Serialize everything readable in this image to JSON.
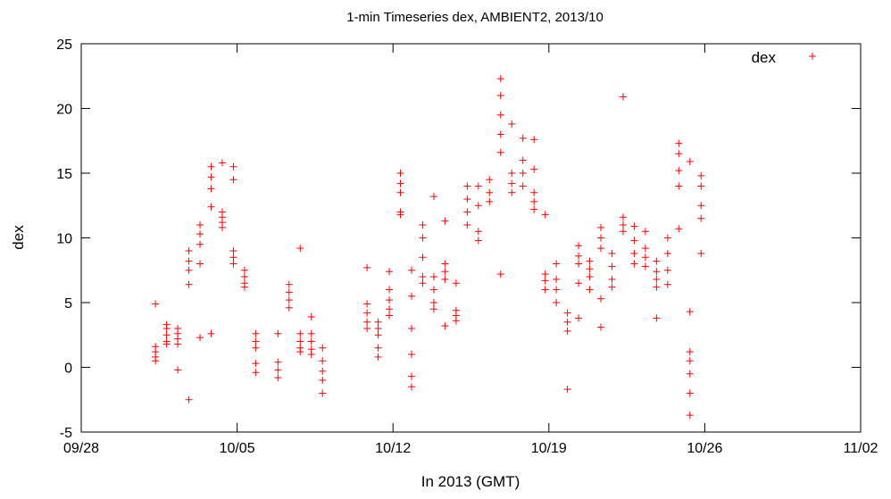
{
  "chart_data": {
    "type": "scatter",
    "title": "1-min Timeseries dex, AMBIENT2, 2013/10",
    "xlabel": "In 2013 (GMT)",
    "ylabel": "dex",
    "xlim": [
      "2013-09-28",
      "2013-11-02"
    ],
    "ylim": [
      -5,
      25
    ],
    "x_ticks": [
      {
        "date": "2013-09-28",
        "label": "09/28"
      },
      {
        "date": "2013-10-05",
        "label": "10/05"
      },
      {
        "date": "2013-10-12",
        "label": "10/12"
      },
      {
        "date": "2013-10-19",
        "label": "10/19"
      },
      {
        "date": "2013-10-26",
        "label": "10/26"
      },
      {
        "date": "2013-11-02",
        "label": "11/02"
      }
    ],
    "y_ticks": [
      -5,
      0,
      5,
      10,
      15,
      20,
      25
    ],
    "grid": false,
    "legend_position": "top-right",
    "marker": "plus",
    "series": [
      {
        "name": "dex",
        "color": "#ff0000",
        "points": [
          {
            "x": "2013-10-01 08:00",
            "y": 1.2
          },
          {
            "x": "2013-10-01 08:00",
            "y": 0.8
          },
          {
            "x": "2013-10-01 08:00",
            "y": 1.6
          },
          {
            "x": "2013-10-01 08:00",
            "y": 4.9
          },
          {
            "x": "2013-10-01 08:00",
            "y": 0.5
          },
          {
            "x": "2013-10-01 20:00",
            "y": 2.5
          },
          {
            "x": "2013-10-01 20:00",
            "y": 2.0
          },
          {
            "x": "2013-10-01 20:00",
            "y": 3.0
          },
          {
            "x": "2013-10-01 20:00",
            "y": 3.3
          },
          {
            "x": "2013-10-01 20:00",
            "y": 1.8
          },
          {
            "x": "2013-10-02 08:00",
            "y": 2.2
          },
          {
            "x": "2013-10-02 08:00",
            "y": 1.8
          },
          {
            "x": "2013-10-02 08:00",
            "y": 2.6
          },
          {
            "x": "2013-10-02 08:00",
            "y": -0.2
          },
          {
            "x": "2013-10-02 08:00",
            "y": 3.0
          },
          {
            "x": "2013-10-02 20:00",
            "y": 8.2
          },
          {
            "x": "2013-10-02 20:00",
            "y": 7.5
          },
          {
            "x": "2013-10-02 20:00",
            "y": 9.0
          },
          {
            "x": "2013-10-02 20:00",
            "y": 6.4
          },
          {
            "x": "2013-10-02 20:00",
            "y": -2.5
          },
          {
            "x": "2013-10-03 08:00",
            "y": 10.3
          },
          {
            "x": "2013-10-03 08:00",
            "y": 9.5
          },
          {
            "x": "2013-10-03 08:00",
            "y": 11.0
          },
          {
            "x": "2013-10-03 08:00",
            "y": 2.3
          },
          {
            "x": "2013-10-03 08:00",
            "y": 8.0
          },
          {
            "x": "2013-10-03 20:00",
            "y": 14.7
          },
          {
            "x": "2013-10-03 20:00",
            "y": 13.8
          },
          {
            "x": "2013-10-03 20:00",
            "y": 15.5
          },
          {
            "x": "2013-10-03 20:00",
            "y": 12.4
          },
          {
            "x": "2013-10-03 20:00",
            "y": 2.6
          },
          {
            "x": "2013-10-04 08:00",
            "y": 11.6
          },
          {
            "x": "2013-10-04 08:00",
            "y": 11.2
          },
          {
            "x": "2013-10-04 08:00",
            "y": 12.0
          },
          {
            "x": "2013-10-04 08:00",
            "y": 15.8
          },
          {
            "x": "2013-10-04 08:00",
            "y": 10.8
          },
          {
            "x": "2013-10-04 20:00",
            "y": 8.5
          },
          {
            "x": "2013-10-04 20:00",
            "y": 8.0
          },
          {
            "x": "2013-10-04 20:00",
            "y": 9.0
          },
          {
            "x": "2013-10-04 20:00",
            "y": 15.5
          },
          {
            "x": "2013-10-04 20:00",
            "y": 14.5
          },
          {
            "x": "2013-10-05 08:00",
            "y": 7.0
          },
          {
            "x": "2013-10-05 08:00",
            "y": 6.5
          },
          {
            "x": "2013-10-05 08:00",
            "y": 7.5
          },
          {
            "x": "2013-10-05 08:00",
            "y": 6.2
          },
          {
            "x": "2013-10-05 20:00",
            "y": 2.0
          },
          {
            "x": "2013-10-05 20:00",
            "y": 1.5
          },
          {
            "x": "2013-10-05 20:00",
            "y": 2.6
          },
          {
            "x": "2013-10-05 20:00",
            "y": -0.4
          },
          {
            "x": "2013-10-05 20:00",
            "y": 0.3
          },
          {
            "x": "2013-10-06 20:00",
            "y": -0.2
          },
          {
            "x": "2013-10-06 20:00",
            "y": -0.8
          },
          {
            "x": "2013-10-06 20:00",
            "y": 0.4
          },
          {
            "x": "2013-10-06 20:00",
            "y": 2.6
          },
          {
            "x": "2013-10-07 08:00",
            "y": 5.8
          },
          {
            "x": "2013-10-07 08:00",
            "y": 5.2
          },
          {
            "x": "2013-10-07 08:00",
            "y": 6.4
          },
          {
            "x": "2013-10-07 08:00",
            "y": 4.6
          },
          {
            "x": "2013-10-07 20:00",
            "y": 2.0
          },
          {
            "x": "2013-10-07 20:00",
            "y": 1.5
          },
          {
            "x": "2013-10-07 20:00",
            "y": 2.6
          },
          {
            "x": "2013-10-07 20:00",
            "y": 9.2
          },
          {
            "x": "2013-10-07 20:00",
            "y": 1.2
          },
          {
            "x": "2013-10-08 08:00",
            "y": 2.0
          },
          {
            "x": "2013-10-08 08:00",
            "y": 1.4
          },
          {
            "x": "2013-10-08 08:00",
            "y": 2.6
          },
          {
            "x": "2013-10-08 08:00",
            "y": 3.9
          },
          {
            "x": "2013-10-08 08:00",
            "y": 1.0
          },
          {
            "x": "2013-10-08 20:00",
            "y": -0.3
          },
          {
            "x": "2013-10-08 20:00",
            "y": -1.0
          },
          {
            "x": "2013-10-08 20:00",
            "y": 0.5
          },
          {
            "x": "2013-10-08 20:00",
            "y": -2.0
          },
          {
            "x": "2013-10-08 20:00",
            "y": 1.5
          },
          {
            "x": "2013-10-10 20:00",
            "y": 4.2
          },
          {
            "x": "2013-10-10 20:00",
            "y": 3.5
          },
          {
            "x": "2013-10-10 20:00",
            "y": 4.9
          },
          {
            "x": "2013-10-10 20:00",
            "y": 7.7
          },
          {
            "x": "2013-10-10 20:00",
            "y": 3.0
          },
          {
            "x": "2013-10-11 08:00",
            "y": 3.0
          },
          {
            "x": "2013-10-11 08:00",
            "y": 2.5
          },
          {
            "x": "2013-10-11 08:00",
            "y": 3.5
          },
          {
            "x": "2013-10-11 08:00",
            "y": 0.8
          },
          {
            "x": "2013-10-11 08:00",
            "y": 1.5
          },
          {
            "x": "2013-10-11 20:00",
            "y": 5.2
          },
          {
            "x": "2013-10-11 20:00",
            "y": 4.5
          },
          {
            "x": "2013-10-11 20:00",
            "y": 6.0
          },
          {
            "x": "2013-10-11 20:00",
            "y": 7.4
          },
          {
            "x": "2013-10-11 20:00",
            "y": 4.0
          },
          {
            "x": "2013-10-12 08:00",
            "y": 13.5
          },
          {
            "x": "2013-10-12 08:00",
            "y": 12.0
          },
          {
            "x": "2013-10-12 08:00",
            "y": 15.0
          },
          {
            "x": "2013-10-12 08:00",
            "y": 11.8
          },
          {
            "x": "2013-10-12 08:00",
            "y": 14.2
          },
          {
            "x": "2013-10-12 20:00",
            "y": 5.5
          },
          {
            "x": "2013-10-12 20:00",
            "y": 3.0
          },
          {
            "x": "2013-10-12 20:00",
            "y": 7.5
          },
          {
            "x": "2013-10-12 20:00",
            "y": 1.0
          },
          {
            "x": "2013-10-12 20:00",
            "y": -1.5
          },
          {
            "x": "2013-10-12 20:00",
            "y": -0.7
          },
          {
            "x": "2013-10-13 08:00",
            "y": 8.5
          },
          {
            "x": "2013-10-13 08:00",
            "y": 7.0
          },
          {
            "x": "2013-10-13 08:00",
            "y": 10.0
          },
          {
            "x": "2013-10-13 08:00",
            "y": 6.5
          },
          {
            "x": "2013-10-13 08:00",
            "y": 11.0
          },
          {
            "x": "2013-10-13 20:00",
            "y": 6.0
          },
          {
            "x": "2013-10-13 20:00",
            "y": 5.0
          },
          {
            "x": "2013-10-13 20:00",
            "y": 7.0
          },
          {
            "x": "2013-10-13 20:00",
            "y": 4.5
          },
          {
            "x": "2013-10-13 20:00",
            "y": 13.2
          },
          {
            "x": "2013-10-14 08:00",
            "y": 7.4
          },
          {
            "x": "2013-10-14 08:00",
            "y": 6.8
          },
          {
            "x": "2013-10-14 08:00",
            "y": 8.0
          },
          {
            "x": "2013-10-14 08:00",
            "y": 11.3
          },
          {
            "x": "2013-10-14 08:00",
            "y": 3.2
          },
          {
            "x": "2013-10-14 20:00",
            "y": 4.0
          },
          {
            "x": "2013-10-14 20:00",
            "y": 3.6
          },
          {
            "x": "2013-10-14 20:00",
            "y": 4.4
          },
          {
            "x": "2013-10-14 20:00",
            "y": 6.5
          },
          {
            "x": "2013-10-15 08:00",
            "y": 12.0
          },
          {
            "x": "2013-10-15 08:00",
            "y": 11.0
          },
          {
            "x": "2013-10-15 08:00",
            "y": 13.0
          },
          {
            "x": "2013-10-15 08:00",
            "y": 14.0
          },
          {
            "x": "2013-10-15 20:00",
            "y": 12.5
          },
          {
            "x": "2013-10-15 20:00",
            "y": 10.5
          },
          {
            "x": "2013-10-15 20:00",
            "y": 14.0
          },
          {
            "x": "2013-10-15 20:00",
            "y": 9.8
          },
          {
            "x": "2013-10-16 08:00",
            "y": 13.5
          },
          {
            "x": "2013-10-16 08:00",
            "y": 12.8
          },
          {
            "x": "2013-10-16 08:00",
            "y": 14.5
          },
          {
            "x": "2013-10-16 20:00",
            "y": 19.5
          },
          {
            "x": "2013-10-16 20:00",
            "y": 18.0
          },
          {
            "x": "2013-10-16 20:00",
            "y": 21.0
          },
          {
            "x": "2013-10-16 20:00",
            "y": 22.3
          },
          {
            "x": "2013-10-16 20:00",
            "y": 7.2
          },
          {
            "x": "2013-10-16 20:00",
            "y": 16.6
          },
          {
            "x": "2013-10-17 08:00",
            "y": 14.2
          },
          {
            "x": "2013-10-17 08:00",
            "y": 13.5
          },
          {
            "x": "2013-10-17 08:00",
            "y": 15.0
          },
          {
            "x": "2013-10-17 08:00",
            "y": 18.8
          },
          {
            "x": "2013-10-17 20:00",
            "y": 15.0
          },
          {
            "x": "2013-10-17 20:00",
            "y": 14.0
          },
          {
            "x": "2013-10-17 20:00",
            "y": 16.0
          },
          {
            "x": "2013-10-17 20:00",
            "y": 17.7
          },
          {
            "x": "2013-10-18 08:00",
            "y": 12.8
          },
          {
            "x": "2013-10-18 08:00",
            "y": 12.2
          },
          {
            "x": "2013-10-18 08:00",
            "y": 13.5
          },
          {
            "x": "2013-10-18 08:00",
            "y": 17.6
          },
          {
            "x": "2013-10-18 08:00",
            "y": 15.3
          },
          {
            "x": "2013-10-18 20:00",
            "y": 6.7
          },
          {
            "x": "2013-10-18 20:00",
            "y": 6.0
          },
          {
            "x": "2013-10-18 20:00",
            "y": 7.2
          },
          {
            "x": "2013-10-18 20:00",
            "y": 11.8
          },
          {
            "x": "2013-10-19 08:00",
            "y": 6.0
          },
          {
            "x": "2013-10-19 08:00",
            "y": 5.0
          },
          {
            "x": "2013-10-19 08:00",
            "y": 6.8
          },
          {
            "x": "2013-10-19 08:00",
            "y": 8.0
          },
          {
            "x": "2013-10-19 20:00",
            "y": 3.5
          },
          {
            "x": "2013-10-19 20:00",
            "y": 2.8
          },
          {
            "x": "2013-10-19 20:00",
            "y": 4.2
          },
          {
            "x": "2013-10-19 20:00",
            "y": -1.7
          },
          {
            "x": "2013-10-20 08:00",
            "y": 8.6
          },
          {
            "x": "2013-10-20 08:00",
            "y": 8.0
          },
          {
            "x": "2013-10-20 08:00",
            "y": 9.4
          },
          {
            "x": "2013-10-20 08:00",
            "y": 3.8
          },
          {
            "x": "2013-10-20 08:00",
            "y": 6.5
          },
          {
            "x": "2013-10-20 20:00",
            "y": 7.6
          },
          {
            "x": "2013-10-20 20:00",
            "y": 7.0
          },
          {
            "x": "2013-10-20 20:00",
            "y": 8.2
          },
          {
            "x": "2013-10-20 20:00",
            "y": 6.0
          },
          {
            "x": "2013-10-21 08:00",
            "y": 10.0
          },
          {
            "x": "2013-10-21 08:00",
            "y": 9.2
          },
          {
            "x": "2013-10-21 08:00",
            "y": 10.8
          },
          {
            "x": "2013-10-21 08:00",
            "y": 5.3
          },
          {
            "x": "2013-10-21 08:00",
            "y": 3.1
          },
          {
            "x": "2013-10-21 20:00",
            "y": 7.8
          },
          {
            "x": "2013-10-21 20:00",
            "y": 6.8
          },
          {
            "x": "2013-10-21 20:00",
            "y": 8.8
          },
          {
            "x": "2013-10-21 20:00",
            "y": 6.2
          },
          {
            "x": "2013-10-22 08:00",
            "y": 11.0
          },
          {
            "x": "2013-10-22 08:00",
            "y": 10.5
          },
          {
            "x": "2013-10-22 08:00",
            "y": 11.6
          },
          {
            "x": "2013-10-22 08:00",
            "y": 20.9
          },
          {
            "x": "2013-10-22 20:00",
            "y": 8.8
          },
          {
            "x": "2013-10-22 20:00",
            "y": 8.0
          },
          {
            "x": "2013-10-22 20:00",
            "y": 9.8
          },
          {
            "x": "2013-10-22 20:00",
            "y": 10.9
          },
          {
            "x": "2013-10-23 08:00",
            "y": 8.5
          },
          {
            "x": "2013-10-23 08:00",
            "y": 7.8
          },
          {
            "x": "2013-10-23 08:00",
            "y": 9.2
          },
          {
            "x": "2013-10-23 08:00",
            "y": 10.5
          },
          {
            "x": "2013-10-23 20:00",
            "y": 6.8
          },
          {
            "x": "2013-10-23 20:00",
            "y": 6.2
          },
          {
            "x": "2013-10-23 20:00",
            "y": 7.4
          },
          {
            "x": "2013-10-23 20:00",
            "y": 3.8
          },
          {
            "x": "2013-10-23 20:00",
            "y": 8.2
          },
          {
            "x": "2013-10-24 08:00",
            "y": 8.8
          },
          {
            "x": "2013-10-24 08:00",
            "y": 7.5
          },
          {
            "x": "2013-10-24 08:00",
            "y": 10.0
          },
          {
            "x": "2013-10-24 08:00",
            "y": 6.4
          },
          {
            "x": "2013-10-24 20:00",
            "y": 15.2
          },
          {
            "x": "2013-10-24 20:00",
            "y": 14.0
          },
          {
            "x": "2013-10-24 20:00",
            "y": 16.5
          },
          {
            "x": "2013-10-24 20:00",
            "y": 17.3
          },
          {
            "x": "2013-10-24 20:00",
            "y": 10.7
          },
          {
            "x": "2013-10-25 08:00",
            "y": -0.5
          },
          {
            "x": "2013-10-25 08:00",
            "y": -2.0
          },
          {
            "x": "2013-10-25 08:00",
            "y": 0.5
          },
          {
            "x": "2013-10-25 08:00",
            "y": -3.7
          },
          {
            "x": "2013-10-25 08:00",
            "y": 1.2
          },
          {
            "x": "2013-10-25 08:00",
            "y": 4.3
          },
          {
            "x": "2013-10-25 08:00",
            "y": 15.9
          },
          {
            "x": "2013-10-25 20:00",
            "y": 12.5
          },
          {
            "x": "2013-10-25 20:00",
            "y": 11.5
          },
          {
            "x": "2013-10-25 20:00",
            "y": 14.0
          },
          {
            "x": "2013-10-25 20:00",
            "y": 14.8
          },
          {
            "x": "2013-10-25 20:00",
            "y": 8.8
          }
        ]
      }
    ]
  }
}
